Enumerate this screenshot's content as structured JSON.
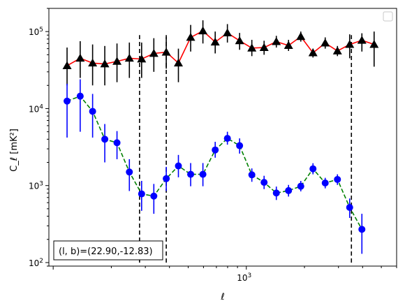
{
  "chart_data": {
    "type": "scatter",
    "xlabel": "ℓ",
    "ylabel": "C_ℓ [mK²]",
    "x_scale": "log",
    "y_scale": "log",
    "xlim": [
      95,
      6000
    ],
    "ylim": [
      90,
      200000
    ],
    "x_ticks": [
      {
        "value": 1000,
        "label": "10",
        "exp": "3"
      }
    ],
    "y_ticks": [
      {
        "value": 100,
        "label": "10",
        "exp": "2"
      },
      {
        "value": 1000,
        "label": "10",
        "exp": "3"
      },
      {
        "value": 10000,
        "label": "10",
        "exp": "4"
      },
      {
        "value": 100000,
        "label": "10",
        "exp": "5"
      }
    ],
    "vlines": [
      280,
      385,
      3500
    ],
    "vline_range": [
      100,
      90000
    ],
    "annotation": "(l, b)=(22.90,-12.83)",
    "legend": "top-right, empty",
    "series": [
      {
        "marker": "triangle",
        "color": "#000000",
        "line_color": "#ff0000",
        "line_style": "solid",
        "points": [
          {
            "x": 118,
            "y": 36000,
            "lo": 20000,
            "hi": 62000
          },
          {
            "x": 138,
            "y": 45000,
            "lo": 25000,
            "hi": 75000
          },
          {
            "x": 160,
            "y": 39000,
            "lo": 20000,
            "hi": 68000
          },
          {
            "x": 185,
            "y": 38000,
            "lo": 20000,
            "hi": 65000
          },
          {
            "x": 214,
            "y": 41000,
            "lo": 22000,
            "hi": 70000
          },
          {
            "x": 248,
            "y": 45000,
            "lo": 25000,
            "hi": 72000
          },
          {
            "x": 287,
            "y": 44000,
            "lo": 25000,
            "hi": 72000
          },
          {
            "x": 332,
            "y": 52000,
            "lo": 30000,
            "hi": 82000
          },
          {
            "x": 385,
            "y": 54000,
            "lo": 33000,
            "hi": 85000
          },
          {
            "x": 445,
            "y": 39000,
            "lo": 22000,
            "hi": 60000
          },
          {
            "x": 515,
            "y": 84000,
            "lo": 55000,
            "hi": 122000
          },
          {
            "x": 596,
            "y": 102000,
            "lo": 70000,
            "hi": 140000
          },
          {
            "x": 690,
            "y": 73000,
            "lo": 52000,
            "hi": 100000
          },
          {
            "x": 798,
            "y": 96000,
            "lo": 72000,
            "hi": 125000
          },
          {
            "x": 923,
            "y": 76000,
            "lo": 58000,
            "hi": 96000
          },
          {
            "x": 1068,
            "y": 61000,
            "lo": 48000,
            "hi": 78000
          },
          {
            "x": 1236,
            "y": 62000,
            "lo": 50000,
            "hi": 76000
          },
          {
            "x": 1430,
            "y": 74000,
            "lo": 62000,
            "hi": 88000
          },
          {
            "x": 1654,
            "y": 66000,
            "lo": 56000,
            "hi": 78000
          },
          {
            "x": 1914,
            "y": 86000,
            "lo": 74000,
            "hi": 100000
          },
          {
            "x": 2214,
            "y": 53000,
            "lo": 46000,
            "hi": 60000
          },
          {
            "x": 2561,
            "y": 71000,
            "lo": 60000,
            "hi": 84000
          },
          {
            "x": 2963,
            "y": 56000,
            "lo": 48000,
            "hi": 65000
          },
          {
            "x": 3428,
            "y": 68000,
            "lo": 45000,
            "hi": 92000
          },
          {
            "x": 3966,
            "y": 77000,
            "lo": 55000,
            "hi": 95000
          },
          {
            "x": 4588,
            "y": 68000,
            "lo": 35000,
            "hi": 100000
          }
        ]
      },
      {
        "marker": "circle",
        "color": "#0000ff",
        "line_color": "#008000",
        "line_style": "dashed",
        "points": [
          {
            "x": 118,
            "y": 12500,
            "lo": 4200,
            "hi": 21000
          },
          {
            "x": 138,
            "y": 14500,
            "lo": 5000,
            "hi": 24000
          },
          {
            "x": 160,
            "y": 9200,
            "lo": 4200,
            "hi": 15500
          },
          {
            "x": 185,
            "y": 4000,
            "lo": 2000,
            "hi": 6300
          },
          {
            "x": 214,
            "y": 3600,
            "lo": 2200,
            "hi": 5100
          },
          {
            "x": 248,
            "y": 1500,
            "lo": 850,
            "hi": 2200
          },
          {
            "x": 287,
            "y": 780,
            "lo": 470,
            "hi": 1150
          },
          {
            "x": 332,
            "y": 730,
            "lo": 430,
            "hi": 1050
          },
          {
            "x": 385,
            "y": 1230,
            "lo": 850,
            "hi": 1750
          },
          {
            "x": 445,
            "y": 1800,
            "lo": 1280,
            "hi": 2500
          },
          {
            "x": 515,
            "y": 1400,
            "lo": 980,
            "hi": 1960
          },
          {
            "x": 596,
            "y": 1400,
            "lo": 980,
            "hi": 1960
          },
          {
            "x": 690,
            "y": 2900,
            "lo": 2300,
            "hi": 3700
          },
          {
            "x": 798,
            "y": 4100,
            "lo": 3400,
            "hi": 5000
          },
          {
            "x": 923,
            "y": 3300,
            "lo": 2600,
            "hi": 4100
          },
          {
            "x": 1068,
            "y": 1380,
            "lo": 1120,
            "hi": 1670
          },
          {
            "x": 1236,
            "y": 1100,
            "lo": 900,
            "hi": 1340
          },
          {
            "x": 1430,
            "y": 800,
            "lo": 650,
            "hi": 970
          },
          {
            "x": 1654,
            "y": 860,
            "lo": 720,
            "hi": 1020
          },
          {
            "x": 1914,
            "y": 980,
            "lo": 840,
            "hi": 1150
          },
          {
            "x": 2214,
            "y": 1650,
            "lo": 1400,
            "hi": 1950
          },
          {
            "x": 2561,
            "y": 1080,
            "lo": 920,
            "hi": 1260
          },
          {
            "x": 2963,
            "y": 1200,
            "lo": 1020,
            "hi": 1400
          },
          {
            "x": 3428,
            "y": 520,
            "lo": 380,
            "hi": 680
          },
          {
            "x": 3966,
            "y": 270,
            "lo": 130,
            "hi": 430
          }
        ]
      }
    ]
  }
}
